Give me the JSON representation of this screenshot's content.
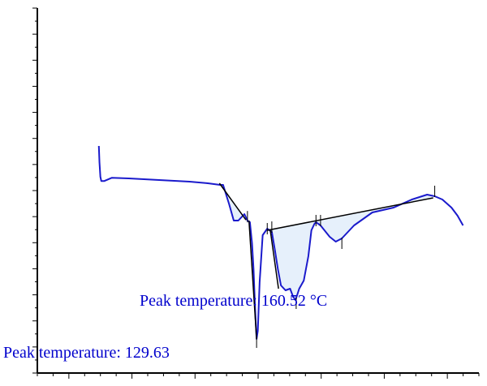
{
  "chart_data": {
    "type": "line",
    "title": "",
    "xlabel": "",
    "ylabel": "",
    "grid": false,
    "xlim": [
      0,
      14.5
    ],
    "ylim": [
      0,
      100
    ],
    "colors": {
      "curve": "#1a1acc",
      "baseline": "#000000",
      "fill": "#e6f0fb",
      "annotation": "#0000cc",
      "axis": "#000000"
    },
    "series": [
      {
        "values": [
          [
            2.02,
            60.0
          ],
          [
            2.04,
            55.0
          ],
          [
            2.07,
            50.5
          ],
          [
            2.1,
            49.2
          ],
          [
            2.2,
            49.2
          ],
          [
            2.45,
            50.2
          ],
          [
            3.0,
            50.0
          ],
          [
            4.0,
            49.5
          ],
          [
            5.0,
            49.0
          ],
          [
            5.6,
            48.5
          ],
          [
            6.0,
            48.0
          ],
          [
            6.1,
            48.0
          ],
          [
            6.3,
            42.0
          ],
          [
            6.45,
            37.0
          ],
          [
            6.6,
            37.0
          ],
          [
            6.8,
            39.0
          ],
          [
            6.9,
            37.0
          ],
          [
            6.98,
            36.5
          ],
          [
            7.05,
            30.0
          ],
          [
            7.1,
            22.0
          ],
          [
            7.15,
            10.0
          ],
          [
            7.2,
            0.5
          ],
          [
            7.24,
            3.0
          ],
          [
            7.3,
            18.0
          ],
          [
            7.4,
            32.5
          ],
          [
            7.55,
            34.5
          ],
          [
            7.7,
            33.5
          ],
          [
            7.8,
            28.0
          ],
          [
            7.9,
            22.0
          ],
          [
            8.0,
            17.0
          ],
          [
            8.15,
            15.5
          ],
          [
            8.3,
            16.0
          ],
          [
            8.4,
            13.5
          ],
          [
            8.48,
            12.5
          ],
          [
            8.6,
            16.0
          ],
          [
            8.75,
            18.5
          ],
          [
            8.9,
            26.0
          ],
          [
            9.0,
            34.0
          ],
          [
            9.1,
            36.0
          ],
          [
            9.15,
            36.5
          ],
          [
            9.3,
            35.5
          ],
          [
            9.6,
            32.0
          ],
          [
            9.8,
            30.5
          ],
          [
            10.0,
            31.5
          ],
          [
            10.4,
            35.5
          ],
          [
            11.0,
            39.5
          ],
          [
            11.7,
            41.0
          ],
          [
            12.3,
            43.5
          ],
          [
            12.8,
            45.0
          ],
          [
            13.05,
            44.5
          ],
          [
            13.3,
            43.5
          ],
          [
            13.6,
            41.0
          ],
          [
            13.8,
            38.5
          ],
          [
            13.98,
            35.5
          ]
        ]
      }
    ],
    "baselines": [
      {
        "from": [
          5.98,
          48.5
        ],
        "to": [
          6.85,
          37.2
        ]
      },
      {
        "from": [
          7.55,
          34.0
        ],
        "to": [
          13.0,
          44.0
        ]
      },
      {
        "from": [
          6.95,
          37.0
        ],
        "to": [
          7.2,
          0.5
        ]
      },
      {
        "from": [
          7.65,
          34.0
        ],
        "to": [
          7.92,
          16.0
        ]
      }
    ],
    "ticks_marks": [
      [
        6.9,
        38.2
      ],
      [
        7.55,
        34.5
      ],
      [
        7.7,
        35.0
      ],
      [
        8.5,
        11.5
      ],
      [
        9.15,
        37.0
      ],
      [
        9.3,
        37.0
      ],
      [
        10.0,
        30.0
      ],
      [
        13.05,
        46.0
      ],
      [
        7.2,
        -0.5
      ]
    ],
    "annotations": [
      {
        "text": "Peak temperature: 160.52 °C"
      },
      {
        "text": "Peak temperature: 129.63"
      }
    ]
  }
}
